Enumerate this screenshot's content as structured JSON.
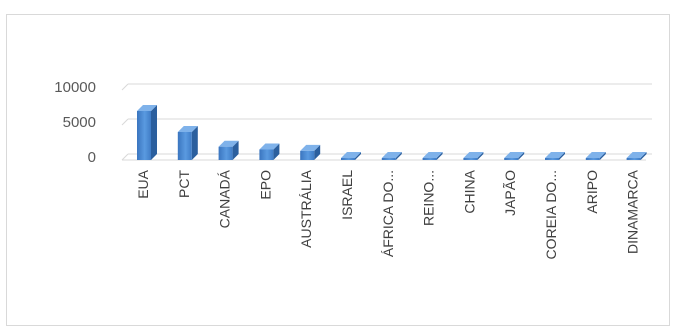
{
  "chart_data": {
    "type": "bar",
    "style": "3d-column",
    "title": "",
    "xlabel": "",
    "ylabel": "",
    "ylim": [
      0,
      10000
    ],
    "yticks": [
      0,
      5000,
      10000
    ],
    "grid": true,
    "legend": "none",
    "bar_color": "#4f8fd6",
    "categories": [
      "EUA",
      "PCT",
      "CANADÁ",
      "EPO",
      "AUSTRÁLIA",
      "ISRAEL",
      "ÁFRICA DO...",
      "REINO...",
      "CHINA",
      "JAPÃO",
      "COREIA DO...",
      "ARIPO",
      "DINAMARCA"
    ],
    "values": [
      7000,
      4000,
      1900,
      1500,
      1300,
      250,
      180,
      160,
      150,
      140,
      130,
      120,
      110
    ]
  }
}
